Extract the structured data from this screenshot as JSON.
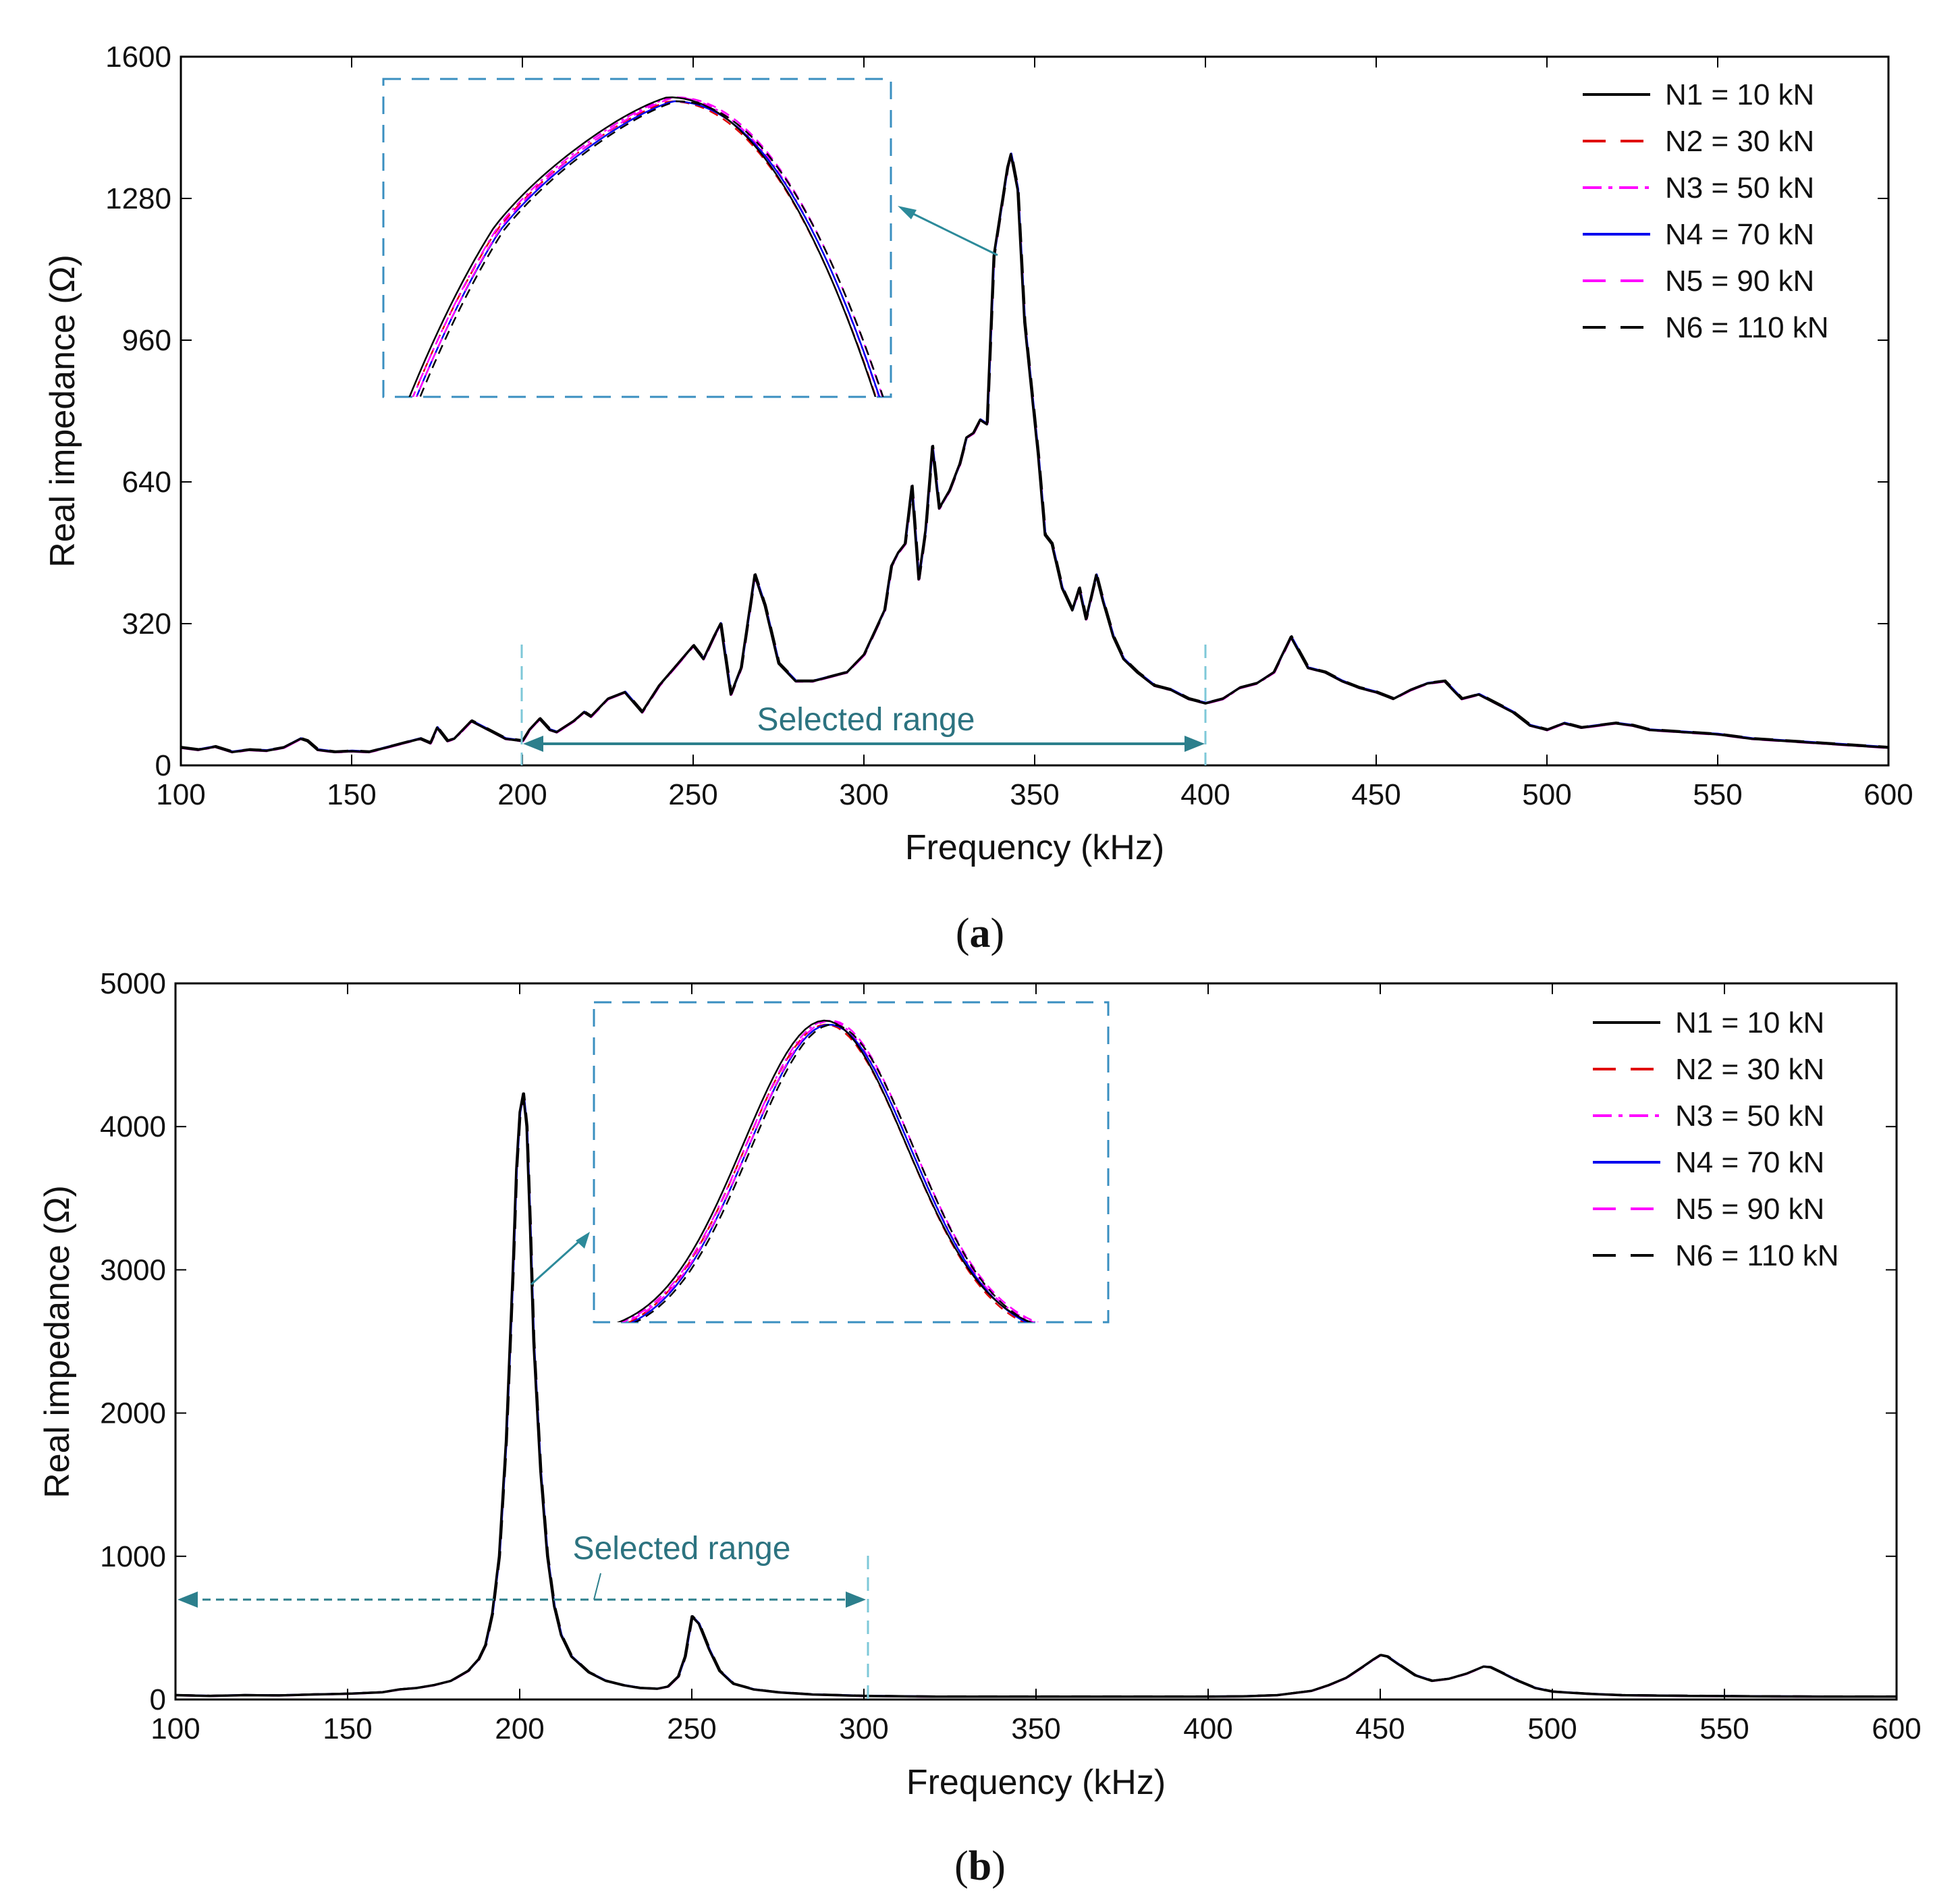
{
  "chart_data": [
    {
      "type": "line",
      "panel_label": "a",
      "xlabel": "Frequency (kHz)",
      "ylabel": "Real impedance (Ω)",
      "xlim": [
        100,
        600
      ],
      "ylim": [
        0,
        1600
      ],
      "xticks": [
        "100",
        "150",
        "200",
        "250",
        "300",
        "350",
        "400",
        "450",
        "500",
        "550",
        "600"
      ],
      "yticks": [
        "0",
        "320",
        "640",
        "960",
        "1280",
        "1600"
      ],
      "xtick_values": [
        100,
        150,
        200,
        250,
        300,
        350,
        400,
        450,
        500,
        550,
        600
      ],
      "ytick_values": [
        0,
        320,
        640,
        960,
        1280,
        1600
      ],
      "legend_position": "top-right",
      "annotation": {
        "text": "Selected range",
        "range_kHz": [
          200,
          400
        ]
      },
      "inset": {
        "description_x_range_kHz": [
          330,
          356
        ],
        "y_range": [
          830,
          1400
        ]
      },
      "series": [
        {
          "name": "N1 = 10 kN",
          "color": "#000000",
          "dash": "solid"
        },
        {
          "name": "N2 = 30 kN",
          "color": "#e00000",
          "dash": "dashed"
        },
        {
          "name": "N3 = 50 kN",
          "color": "#ff00ff",
          "dash": "dashdot"
        },
        {
          "name": "N4 = 70 kN",
          "color": "#0000ee",
          "dash": "solid"
        },
        {
          "name": "N5 = 90 kN",
          "color": "#ff00ff",
          "dash": "dashed"
        },
        {
          "name": "N6 = 110 kN",
          "color": "#000000",
          "dash": "dashed"
        }
      ],
      "x": [
        100,
        105,
        110,
        115,
        120,
        125,
        130,
        135,
        137,
        140,
        145,
        150,
        155,
        160,
        165,
        170,
        173,
        175,
        178,
        180,
        185,
        190,
        195,
        200,
        202,
        205,
        208,
        210,
        215,
        218,
        220,
        225,
        230,
        235,
        240,
        245,
        250,
        253,
        256,
        258,
        261,
        264,
        268,
        271,
        275,
        280,
        285,
        290,
        295,
        300,
        303,
        306,
        308,
        310,
        312,
        314,
        316,
        318,
        320,
        322,
        325,
        328,
        330,
        332,
        334,
        336,
        338,
        340,
        342,
        343,
        345,
        347,
        349,
        351,
        353,
        355,
        358,
        361,
        363,
        365,
        368,
        370,
        373,
        376,
        380,
        385,
        390,
        395,
        400,
        405,
        410,
        415,
        420,
        425,
        430,
        435,
        440,
        445,
        450,
        455,
        460,
        465,
        470,
        475,
        480,
        485,
        490,
        495,
        500,
        505,
        510,
        515,
        520,
        525,
        530,
        540,
        550,
        560,
        570,
        580,
        590,
        600
      ],
      "values": [
        40,
        35,
        42,
        30,
        35,
        33,
        40,
        60,
        55,
        35,
        30,
        32,
        30,
        40,
        50,
        60,
        50,
        85,
        55,
        60,
        100,
        80,
        60,
        55,
        80,
        105,
        80,
        75,
        100,
        120,
        110,
        150,
        165,
        120,
        180,
        225,
        270,
        240,
        290,
        320,
        160,
        220,
        430,
        360,
        230,
        190,
        190,
        200,
        210,
        250,
        300,
        350,
        450,
        480,
        500,
        630,
        420,
        530,
        720,
        580,
        620,
        680,
        740,
        750,
        780,
        770,
        1150,
        1250,
        1350,
        1380,
        1300,
        1000,
        850,
        700,
        520,
        500,
        400,
        350,
        400,
        330,
        430,
        370,
        290,
        240,
        210,
        180,
        170,
        150,
        140,
        150,
        175,
        185,
        210,
        290,
        220,
        210,
        190,
        175,
        165,
        150,
        170,
        185,
        190,
        150,
        160,
        140,
        120,
        90,
        80,
        95,
        85,
        90,
        95,
        90,
        80,
        75,
        70,
        60,
        55,
        50,
        45,
        40
      ]
    },
    {
      "type": "line",
      "panel_label": "b",
      "xlabel": "Frequency (kHz)",
      "ylabel": "Real impedance (Ω)",
      "xlim": [
        100,
        600
      ],
      "ylim": [
        0,
        5000
      ],
      "xticks": [
        "100",
        "150",
        "200",
        "250",
        "300",
        "350",
        "400",
        "450",
        "500",
        "550",
        "600"
      ],
      "yticks": [
        "0",
        "1000",
        "2000",
        "3000",
        "4000",
        "5000"
      ],
      "xtick_values": [
        100,
        150,
        200,
        250,
        300,
        350,
        400,
        450,
        500,
        550,
        600
      ],
      "ytick_values": [
        0,
        1000,
        2000,
        3000,
        4000,
        5000
      ],
      "legend_position": "top-right",
      "annotation": {
        "text": "Selected range",
        "range_kHz": [
          100,
          300
        ]
      },
      "inset": {
        "description_x_range_kHz": [
          193,
          209
        ],
        "y_range": [
          2600,
          4300
        ]
      },
      "series": [
        {
          "name": "N1 = 10 kN",
          "color": "#000000",
          "dash": "solid"
        },
        {
          "name": "N2 = 30 kN",
          "color": "#e00000",
          "dash": "dashed"
        },
        {
          "name": "N3 = 50 kN",
          "color": "#ff00ff",
          "dash": "dashdot"
        },
        {
          "name": "N4 = 70 kN",
          "color": "#0000ee",
          "dash": "solid"
        },
        {
          "name": "N5 = 90 kN",
          "color": "#ff00ff",
          "dash": "dashed"
        },
        {
          "name": "N6 = 110 kN",
          "color": "#000000",
          "dash": "dashed"
        }
      ],
      "x": [
        100,
        110,
        120,
        130,
        140,
        150,
        160,
        165,
        170,
        175,
        180,
        185,
        188,
        190,
        192,
        194,
        196,
        198,
        199,
        200,
        201,
        202,
        203,
        204,
        206,
        208,
        210,
        212,
        215,
        220,
        225,
        230,
        235,
        240,
        243,
        246,
        248,
        250,
        252,
        255,
        258,
        262,
        268,
        275,
        285,
        300,
        320,
        340,
        360,
        380,
        400,
        410,
        420,
        430,
        435,
        440,
        445,
        448,
        450,
        452,
        455,
        460,
        465,
        470,
        475,
        478,
        480,
        482,
        485,
        490,
        495,
        500,
        510,
        520,
        540,
        560,
        580,
        600
      ],
      "values": [
        30,
        25,
        30,
        28,
        35,
        40,
        50,
        70,
        80,
        100,
        130,
        200,
        280,
        380,
        600,
        1000,
        1800,
        3000,
        3700,
        4100,
        4230,
        4000,
        3300,
        2500,
        1600,
        1000,
        650,
        450,
        300,
        190,
        130,
        100,
        80,
        75,
        90,
        160,
        300,
        580,
        530,
        350,
        200,
        110,
        70,
        50,
        35,
        25,
        20,
        20,
        20,
        20,
        20,
        22,
        30,
        60,
        100,
        150,
        230,
        280,
        310,
        300,
        250,
        170,
        130,
        145,
        180,
        210,
        230,
        225,
        190,
        130,
        80,
        55,
        40,
        30,
        25,
        22,
        20,
        20
      ]
    }
  ]
}
